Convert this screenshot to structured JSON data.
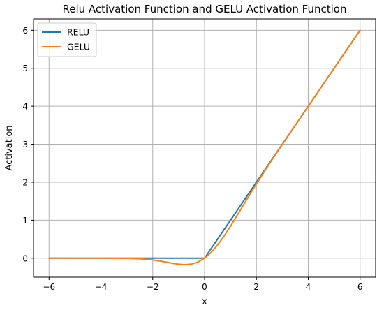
{
  "chart_data": {
    "type": "line",
    "title": "Relu Activation Function and GELU Activation Function",
    "xlabel": "x",
    "ylabel": "Activation",
    "xlim": [
      -6.6,
      6.6
    ],
    "ylim": [
      -0.5,
      6.3
    ],
    "xticks": [
      -6,
      -4,
      -2,
      0,
      2,
      4,
      6
    ],
    "xtick_labels": [
      "−6",
      "−4",
      "−2",
      "0",
      "2",
      "4",
      "6"
    ],
    "yticks": [
      0,
      1,
      2,
      3,
      4,
      5,
      6
    ],
    "ytick_labels": [
      "0",
      "1",
      "2",
      "3",
      "4",
      "5",
      "6"
    ],
    "grid": true,
    "legend_position": "top-left",
    "series": [
      {
        "name": "RELU",
        "color": "#1f77b4",
        "x": [
          -6,
          -5,
          -4,
          -3,
          -2,
          -1,
          0,
          1,
          2,
          3,
          4,
          5,
          6
        ],
        "y": [
          0,
          0,
          0,
          0,
          0,
          0,
          0,
          1,
          2,
          3,
          4,
          5,
          6
        ]
      },
      {
        "name": "GELU",
        "color": "#ff7f0e",
        "x": [
          -6,
          -5,
          -4,
          -3.5,
          -3,
          -2.5,
          -2,
          -1.75,
          -1.5,
          -1.25,
          -1,
          -0.75,
          -0.5,
          -0.25,
          0,
          0.25,
          0.5,
          0.75,
          1,
          1.25,
          1.5,
          1.75,
          2,
          2.5,
          3,
          3.5,
          4,
          5,
          6
        ],
        "y": [
          0,
          0,
          -0.0001,
          -0.0008,
          -0.004,
          -0.0155,
          -0.0455,
          -0.0702,
          -0.1002,
          -0.132,
          -0.1587,
          -0.17,
          -0.1543,
          -0.1003,
          0,
          0.1497,
          0.3457,
          0.58,
          0.8413,
          1.118,
          1.3998,
          1.6798,
          1.9545,
          2.4845,
          2.996,
          3.4992,
          3.9999,
          5,
          6
        ]
      }
    ]
  }
}
